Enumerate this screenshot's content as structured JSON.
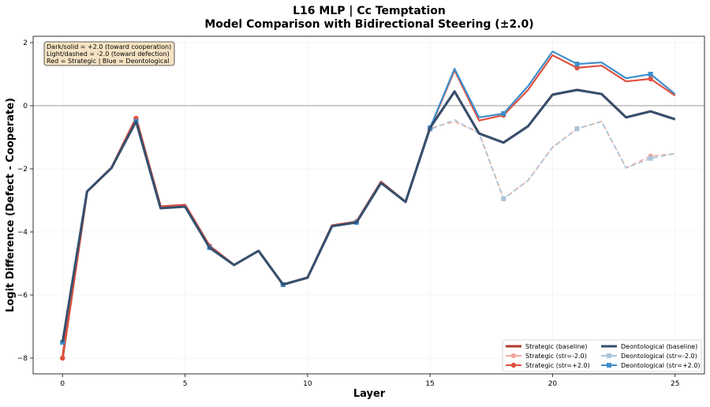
{
  "chart_data": {
    "type": "line",
    "title": "L16 MLP | Cc Temptation",
    "subtitle": "Model Comparison with Bidirectional Steering (±2.0)",
    "xlabel": "Layer",
    "ylabel": "Logit Difference (Defect - Cooperate)",
    "xlim": [
      -1.2,
      26.2
    ],
    "ylim": [
      -8.5,
      2.2
    ],
    "xticks": [
      0,
      5,
      10,
      15,
      20,
      25
    ],
    "yticks": [
      2,
      0,
      -2,
      -4,
      -6,
      -8
    ],
    "grid": true,
    "reference_line_y": 0,
    "legend_placement": "lower-right",
    "annotation": [
      "Dark/solid = +2.0 (toward cooperation)",
      "Light/dashed = -2.0 (toward defection)",
      "Red = Strategic | Blue = Deontological"
    ],
    "marker_every": 3,
    "x": [
      0,
      1,
      2,
      3,
      4,
      5,
      6,
      7,
      8,
      9,
      10,
      11,
      12,
      13,
      14,
      15,
      16,
      17,
      18,
      19,
      20,
      21,
      22,
      23,
      24,
      25
    ],
    "series": [
      {
        "name": "Strategic (baseline)",
        "color": "#b03a2e",
        "style": "solid",
        "marker": "none",
        "values": [
          -8.0,
          -2.72,
          -1.97,
          -0.4,
          -3.2,
          -3.15,
          -4.45,
          -5.05,
          -4.6,
          -5.67,
          -5.45,
          -3.8,
          -3.68,
          -2.42,
          -3.05,
          -0.7,
          0.45,
          -0.88,
          -1.17,
          -0.65,
          0.35,
          0.5,
          0.37,
          -0.37,
          -0.18,
          -0.43
        ]
      },
      {
        "name": "Deontological (baseline)",
        "color": "#34506e",
        "style": "solid",
        "marker": "none",
        "values": [
          -7.5,
          -2.72,
          -1.97,
          -0.5,
          -3.25,
          -3.2,
          -4.5,
          -5.05,
          -4.6,
          -5.67,
          -5.45,
          -3.82,
          -3.7,
          -2.45,
          -3.05,
          -0.7,
          0.45,
          -0.88,
          -1.17,
          -0.65,
          0.35,
          0.5,
          0.37,
          -0.37,
          -0.18,
          -0.43
        ]
      },
      {
        "name": "Strategic (str=-2.0)",
        "color": "#f1a99b",
        "style": "dashed",
        "marker": "circle",
        "values": [
          -8.0,
          -2.72,
          -1.97,
          -0.4,
          -3.2,
          -3.15,
          -4.45,
          -5.05,
          -4.6,
          -5.67,
          -5.45,
          -3.8,
          -3.68,
          -2.42,
          -3.05,
          -0.72,
          -0.5,
          -0.85,
          -2.95,
          -2.37,
          -1.32,
          -0.73,
          -0.5,
          -1.97,
          -1.6,
          -1.52
        ]
      },
      {
        "name": "Deontological (str=-2.0)",
        "color": "#a9c4dc",
        "style": "dashed",
        "marker": "square",
        "values": [
          -7.5,
          -2.72,
          -1.97,
          -0.5,
          -3.25,
          -3.2,
          -4.5,
          -5.05,
          -4.6,
          -5.67,
          -5.45,
          -3.82,
          -3.7,
          -2.45,
          -3.05,
          -0.75,
          -0.45,
          -0.88,
          -2.95,
          -2.37,
          -1.32,
          -0.73,
          -0.5,
          -1.97,
          -1.67,
          -1.52
        ]
      },
      {
        "name": "Strategic (str=+2.0)",
        "color": "#e0513f",
        "style": "solid",
        "marker": "circle",
        "values": [
          -8.0,
          -2.72,
          -1.97,
          -0.4,
          -3.2,
          -3.15,
          -4.45,
          -5.05,
          -4.6,
          -5.67,
          -5.45,
          -3.8,
          -3.68,
          -2.42,
          -3.05,
          -0.72,
          1.12,
          -0.47,
          -0.3,
          0.5,
          1.6,
          1.2,
          1.27,
          0.77,
          0.85,
          0.32
        ]
      },
      {
        "name": "Deontological (str=+2.0)",
        "color": "#3d8fcc",
        "style": "solid",
        "marker": "square",
        "values": [
          -7.5,
          -2.72,
          -1.97,
          -0.5,
          -3.25,
          -3.2,
          -4.5,
          -5.05,
          -4.6,
          -5.67,
          -5.45,
          -3.82,
          -3.7,
          -2.45,
          -3.05,
          -0.7,
          1.17,
          -0.37,
          -0.25,
          0.62,
          1.72,
          1.32,
          1.37,
          0.87,
          1.0,
          0.37
        ]
      }
    ],
    "legend_order": [
      0,
      1,
      2,
      3,
      4,
      5
    ]
  }
}
